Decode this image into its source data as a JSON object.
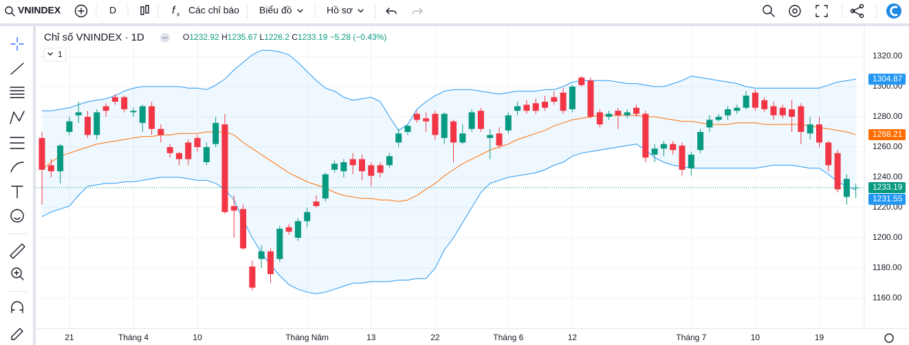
{
  "ui": {
    "symbol": "VNINDEX",
    "interval": "D",
    "indicators": "Các chỉ báo",
    "chart_type": "Biểu đồ",
    "profile": "Hồ sơ",
    "legend_title": "Chỉ số VNINDEX · 1D",
    "collapse_count": "1",
    "change": "−5.28 (−0.43%)"
  },
  "chart_data": {
    "type": "candlestick",
    "categories": [
      null,
      null,
      null,
      "21",
      null,
      null,
      null,
      null,
      null,
      null,
      "Tháng 4",
      null,
      null,
      null,
      null,
      null,
      null,
      "10",
      null,
      null,
      null,
      null,
      null,
      null,
      null,
      null,
      null,
      null,
      null,
      "Tháng Năm",
      null,
      null,
      null,
      null,
      null,
      null,
      "13",
      null,
      null,
      null,
      null,
      null,
      null,
      "22",
      null,
      null,
      null,
      null,
      null,
      null,
      null,
      "Tháng 6",
      null,
      null,
      null,
      null,
      null,
      null,
      "12",
      null,
      null,
      null,
      null,
      null,
      null,
      null,
      null,
      null,
      null,
      null,
      null,
      "Tháng 7",
      null,
      null,
      null,
      null,
      null,
      null,
      "10",
      null,
      null,
      null,
      null,
      null,
      null,
      "19",
      null,
      null,
      null,
      null
    ],
    "ohlc_prefixes": [
      "O",
      "H",
      "L",
      "C"
    ],
    "open": [
      1266,
      1248,
      1244,
      1270,
      1281,
      1280,
      1268,
      1287,
      1293,
      1293,
      1283,
      1276,
      1287,
      1272,
      1260,
      1256,
      1263,
      1266,
      1250,
      1262,
      1275,
      1221,
      1219,
      1181,
      1186,
      1191,
      1186,
      1207,
      1200,
      1211,
      1224,
      1226,
      1245,
      1244,
      1252,
      1252,
      1248,
      1248,
      1248,
      1263,
      1270,
      1282,
      1279,
      1282,
      1266,
      1277,
      1263,
      1272,
      1284,
      1266,
      1269,
      1271,
      1284,
      1288,
      1289,
      1290,
      1293,
      1296,
      1285,
      1306,
      1304,
      1283,
      1280,
      1284,
      1281,
      1286,
      1282,
      1255,
      1259,
      1262,
      1261,
      1246,
      1258,
      1273,
      1278,
      1281,
      1284,
      1286,
      1296,
      1291,
      1287,
      1286,
      1285,
      1287,
      1269,
      1275,
      1263,
      1256,
      1227,
      1232.92
    ],
    "high": [
      1270,
      1252,
      1262,
      1280,
      1290,
      1284,
      1285,
      1289,
      1295,
      1294,
      1286,
      1288,
      1290,
      1275,
      1262,
      1257,
      1265,
      1268,
      1263,
      1280,
      1282,
      1228,
      1222,
      1185,
      1195,
      1193,
      1208,
      1209,
      1213,
      1220,
      1228,
      1243,
      1251,
      1252,
      1256,
      1255,
      1250,
      1250,
      1256,
      1272,
      1275,
      1284,
      1283,
      1284,
      1283,
      1278,
      1275,
      1285,
      1286,
      1272,
      1273,
      1283,
      1290,
      1291,
      1292,
      1294,
      1297,
      1299,
      1301,
      1307,
      1306,
      1285,
      1284,
      1286,
      1285,
      1288,
      1284,
      1262,
      1264,
      1264,
      1263,
      1257,
      1272,
      1281,
      1282,
      1287,
      1288,
      1297,
      1298,
      1293,
      1290,
      1288,
      1291,
      1289,
      1280,
      1280,
      1264,
      1258,
      1242,
      1235.67
    ],
    "low": [
      1222,
      1240,
      1236,
      1268,
      1276,
      1266,
      1265,
      1280,
      1288,
      1283,
      1280,
      1270,
      1268,
      1263,
      1253,
      1248,
      1248,
      1257,
      1248,
      1260,
      1216,
      1200,
      1192,
      1165,
      1180,
      1170,
      1184,
      1202,
      1198,
      1207,
      1220,
      1224,
      1243,
      1240,
      1242,
      1238,
      1234,
      1240,
      1246,
      1260,
      1268,
      1276,
      1270,
      1265,
      1262,
      1250,
      1262,
      1270,
      1270,
      1252,
      1259,
      1269,
      1281,
      1282,
      1282,
      1284,
      1288,
      1282,
      1283,
      1300,
      1279,
      1273,
      1278,
      1272,
      1279,
      1280,
      1250,
      1250,
      1254,
      1255,
      1241,
      1241,
      1256,
      1270,
      1277,
      1278,
      1282,
      1285,
      1284,
      1283,
      1278,
      1279,
      1270,
      1262,
      1265,
      1260,
      1244,
      1230,
      1222,
      1226.2
    ],
    "close": [
      1245,
      1244,
      1261,
      1277,
      1283,
      1268,
      1283,
      1284,
      1290,
      1285,
      1284,
      1287,
      1272,
      1268,
      1256,
      1252,
      1252,
      1260,
      1260,
      1276,
      1217,
      1218,
      1193,
      1167,
      1191,
      1176,
      1206,
      1204,
      1211,
      1217,
      1221,
      1242,
      1249,
      1250,
      1248,
      1244,
      1241,
      1243,
      1254,
      1269,
      1274,
      1278,
      1277,
      1268,
      1282,
      1263,
      1269,
      1283,
      1272,
      1268,
      1261,
      1281,
      1287,
      1284,
      1284,
      1286,
      1290,
      1284,
      1300,
      1301,
      1280,
      1275,
      1282,
      1281,
      1283,
      1282,
      1253,
      1259,
      1262,
      1258,
      1245,
      1255,
      1270,
      1278,
      1280,
      1285,
      1286,
      1294,
      1286,
      1285,
      1281,
      1281,
      1280,
      1270,
      1275,
      1263,
      1248,
      1232,
      1239,
      1233.19
    ],
    "up_color": "#089981",
    "down_color": "#f23645",
    "series": [
      {
        "color": "#2196f3",
        "values": [
          1284,
          1284,
          1285,
          1286,
          1288,
          1290,
          1291,
          1292,
          1294,
          1297,
          1299,
          1300,
          1300,
          1300,
          1300,
          1300,
          1299,
          1299,
          1298,
          1301,
          1305,
          1311,
          1316,
          1321,
          1324,
          1324,
          1323,
          1321,
          1316,
          1310,
          1304,
          1299,
          1297,
          1293,
          1291,
          1292,
          1293,
          1290,
          1280,
          1271,
          1275,
          1285,
          1290,
          1294,
          1297,
          1298,
          1298,
          1298,
          1297,
          1296,
          1295,
          1296,
          1297,
          1297,
          1297,
          1298,
          1298,
          1300,
          1303,
          1304,
          1304,
          1304,
          1304,
          1303,
          1302,
          1302,
          1301,
          1300,
          1300,
          1302,
          1304,
          1307,
          1306,
          1305,
          1304,
          1303,
          1302,
          1300,
          1299,
          1299,
          1299,
          1299,
          1299,
          1299,
          1299,
          1299,
          1301,
          1303,
          1304,
          1304.87
        ]
      },
      {
        "color": "#ff6d00",
        "values": [
          1245,
          1250,
          1254,
          1256,
          1258,
          1260,
          1262,
          1263,
          1264,
          1265,
          1266,
          1267,
          1267,
          1268,
          1268,
          1269,
          1269,
          1269,
          1270,
          1270,
          1270,
          1268,
          1263,
          1259,
          1255,
          1251,
          1247,
          1243,
          1240,
          1237,
          1235,
          1233,
          1230,
          1228,
          1227,
          1226,
          1226,
          1225,
          1225,
          1224,
          1225,
          1228,
          1232,
          1236,
          1241,
          1245,
          1249,
          1252,
          1255,
          1258,
          1260,
          1262,
          1265,
          1267,
          1269,
          1271,
          1274,
          1276,
          1278,
          1279,
          1280,
          1281,
          1281,
          1281,
          1281,
          1281,
          1280,
          1280,
          1279,
          1278,
          1277,
          1277,
          1276,
          1275,
          1275,
          1275,
          1276,
          1276,
          1276,
          1275,
          1275,
          1275,
          1275,
          1275,
          1274,
          1273,
          1272,
          1271,
          1270,
          1268.21
        ]
      },
      {
        "color": "#2196f3",
        "values": [
          1214,
          1217,
          1219,
          1221,
          1228,
          1234,
          1235,
          1236,
          1236,
          1237,
          1237,
          1238,
          1239,
          1240,
          1240,
          1240,
          1239,
          1238,
          1238,
          1236,
          1232,
          1225,
          1212,
          1200,
          1190,
          1182,
          1175,
          1169,
          1166,
          1164,
          1163,
          1164,
          1166,
          1168,
          1170,
          1170,
          1171,
          1171,
          1171,
          1172,
          1172,
          1173,
          1173,
          1180,
          1192,
          1200,
          1210,
          1220,
          1230,
          1236,
          1238,
          1240,
          1241,
          1242,
          1243,
          1245,
          1248,
          1250,
          1254,
          1256,
          1257,
          1258,
          1259,
          1260,
          1261,
          1262,
          1258,
          1253,
          1250,
          1248,
          1247,
          1246,
          1246,
          1246,
          1246,
          1246,
          1246,
          1246,
          1246,
          1247,
          1248,
          1248,
          1248,
          1247,
          1246,
          1246,
          1242,
          1237,
          1234,
          1231.55
        ]
      }
    ],
    "band_fill": "#2196f3",
    "ylim": [
      1140,
      1340
    ],
    "yticks": [
      {
        "value": 1160,
        "label": "1160.00"
      },
      {
        "value": 1180,
        "label": "1180.00"
      },
      {
        "value": 1200,
        "label": "1200.00"
      },
      {
        "value": 1220,
        "label": "1220.00"
      },
      {
        "value": 1240,
        "label": "1240.00"
      },
      {
        "value": 1260,
        "label": "1260.00"
      },
      {
        "value": 1280,
        "label": "1280.00"
      },
      {
        "value": 1300,
        "label": "1300.00"
      },
      {
        "value": 1320,
        "label": "1320.00"
      }
    ],
    "grid": true
  }
}
